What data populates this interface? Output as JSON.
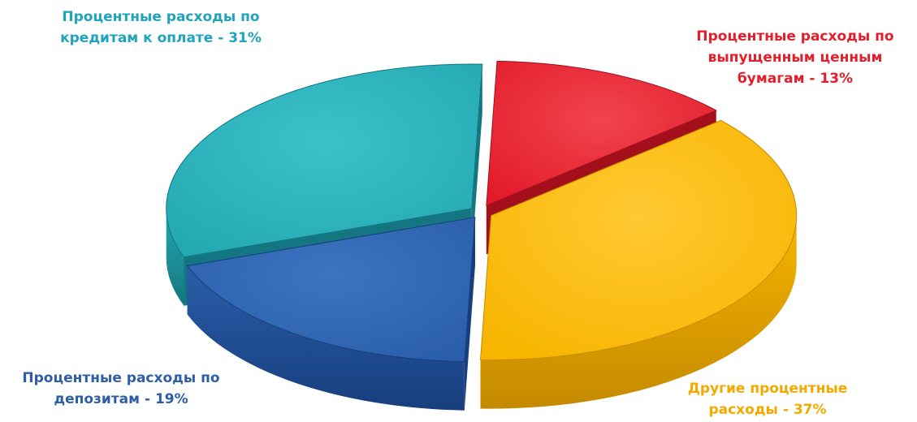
{
  "chart_data": {
    "type": "pie",
    "title": "",
    "slices": [
      {
        "lines": [
          "Процентные расходы по",
          "выпущенным ценным",
          "бумагам - 13%"
        ],
        "value": 13,
        "color": "#e31b2a",
        "side": "#a3101c",
        "top_hi": "#f0444f",
        "label_color": "#e41e2b"
      },
      {
        "lines": [
          "Другие процентные",
          "расходы - 37%"
        ],
        "value": 37,
        "color": "#f7b500",
        "side": "#c48a00",
        "top_hi": "#ffc933",
        "label_color": "#f4a900"
      },
      {
        "lines": [
          "Процентные расходы по",
          "депозитам - 19%"
        ],
        "value": 19,
        "color": "#2a5eaa",
        "side": "#173e7d",
        "top_hi": "#3d74c2",
        "label_color": "#2f5ea9"
      },
      {
        "lines": [
          "Процентные расходы по",
          "кредитам к оплате - 31%"
        ],
        "value": 31,
        "color": "#24a8b2",
        "side": "#147680",
        "top_hi": "#3cc0c9",
        "label_color": "#20a4bd"
      }
    ]
  }
}
